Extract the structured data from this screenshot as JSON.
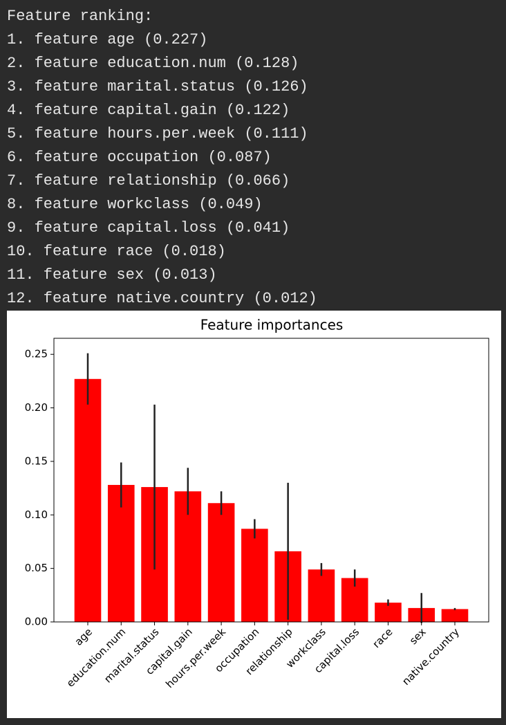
{
  "console": {
    "lines": [
      "Feature ranking:",
      "1. feature age (0.227)",
      "2. feature education.num (0.128)",
      "3. feature marital.status (0.126)",
      "4. feature capital.gain (0.122)",
      "5. feature hours.per.week (0.111)",
      "6. feature occupation (0.087)",
      "7. feature relationship (0.066)",
      "8. feature workclass (0.049)",
      "9. feature capital.loss (0.041)",
      "10. feature race (0.018)",
      "11. feature sex (0.013)",
      "12. feature native.country (0.012)"
    ]
  },
  "chart_data": {
    "type": "bar",
    "title": "Feature importances",
    "categories": [
      "age",
      "education.num",
      "marital.status",
      "capital.gain",
      "hours.per.week",
      "occupation",
      "relationship",
      "workclass",
      "capital.loss",
      "race",
      "sex",
      "native.country"
    ],
    "values": [
      0.227,
      0.128,
      0.126,
      0.122,
      0.111,
      0.087,
      0.066,
      0.049,
      0.041,
      0.018,
      0.013,
      0.012
    ],
    "errors": [
      0.024,
      0.021,
      0.077,
      0.022,
      0.011,
      0.009,
      0.064,
      0.006,
      0.008,
      0.003,
      0.014,
      0.001
    ],
    "color": "#ff0000",
    "error_color": "#222222",
    "ylim": [
      0,
      0.265
    ],
    "yticks": [
      {
        "value": 0,
        "label": "0.00"
      },
      {
        "value": 0.05,
        "label": "0.05"
      },
      {
        "value": 0.1,
        "label": "0.10"
      },
      {
        "value": 0.15,
        "label": "0.15"
      },
      {
        "value": 0.2,
        "label": "0.20"
      },
      {
        "value": 0.25,
        "label": "0.25"
      }
    ],
    "grid": false
  }
}
